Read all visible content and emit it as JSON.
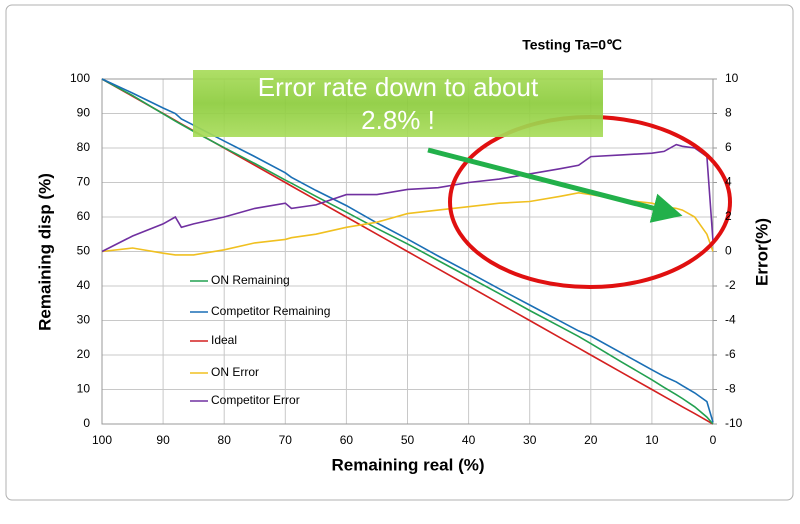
{
  "chart_data": {
    "type": "line",
    "title": "Testing  Ta=0℃",
    "annotation": [
      "Error rate down to about",
      "2.8% !"
    ],
    "x_label": "Remaining real (%)",
    "y_label": "Remaining disp (%)",
    "y2_label": "Error(%)",
    "x": [
      100,
      95,
      90,
      88,
      87,
      85,
      80,
      75,
      70,
      69,
      65,
      60,
      55,
      50,
      45,
      40,
      35,
      30,
      25,
      22,
      20,
      15,
      10,
      8,
      6,
      5,
      3,
      1,
      0
    ],
    "xlim": [
      100,
      0
    ],
    "xticks": [
      100,
      90,
      80,
      70,
      60,
      50,
      40,
      30,
      20,
      10,
      0
    ],
    "ylim": [
      0,
      100
    ],
    "yticks": [
      0,
      10,
      20,
      30,
      40,
      50,
      60,
      70,
      80,
      90,
      100
    ],
    "y2lim": [
      -10,
      10
    ],
    "y2ticks": [
      -10,
      -8,
      -6,
      -4,
      -2,
      0,
      2,
      4,
      6,
      8,
      10
    ],
    "grid": true,
    "series": [
      {
        "name": "ON Remaining",
        "color": "#22a050",
        "values": [
          100,
          95.2,
          89.9,
          87.8,
          86.8,
          84.8,
          80.1,
          75.5,
          70.7,
          69.8,
          66,
          61.4,
          56.7,
          52.2,
          47.4,
          42.6,
          37.8,
          32.9,
          28.2,
          25.4,
          23.3,
          18,
          12.8,
          10.6,
          8.5,
          7.4,
          5,
          2,
          0
        ]
      },
      {
        "name": "Competitor  Remaining",
        "color": "#1a6fb5",
        "values": [
          100,
          95.9,
          91.6,
          90,
          88.4,
          86.6,
          82,
          77.5,
          72.8,
          71.5,
          67.7,
          63.3,
          58.3,
          53.6,
          48.7,
          44,
          39.2,
          34.5,
          29.8,
          27,
          25.5,
          20.6,
          15.7,
          13.8,
          12.2,
          11.1,
          9,
          6.5,
          0.5
        ]
      },
      {
        "name": "Ideal",
        "color": "#d42020",
        "values": [
          100,
          95,
          90,
          88,
          87,
          85,
          80,
          75,
          70,
          69,
          65,
          60,
          55,
          50,
          45,
          40,
          35,
          30,
          25,
          22,
          20,
          15,
          10,
          8,
          6,
          5,
          3,
          1,
          0
        ]
      },
      {
        "name": "ON Error",
        "color": "#f0c020",
        "axis": "y2",
        "values": [
          0,
          0.2,
          -0.1,
          -0.2,
          -0.2,
          -0.2,
          0.1,
          0.5,
          0.7,
          0.8,
          1,
          1.4,
          1.7,
          2.2,
          2.4,
          2.6,
          2.8,
          2.9,
          3.2,
          3.4,
          3.3,
          3,
          2.8,
          2.6,
          2.5,
          2.4,
          2,
          1,
          0
        ]
      },
      {
        "name": "Competitor   Error",
        "color": "#7030a0",
        "axis": "y2",
        "values": [
          0,
          0.9,
          1.6,
          2,
          1.4,
          1.6,
          2,
          2.5,
          2.8,
          2.5,
          2.7,
          3.3,
          3.3,
          3.6,
          3.7,
          4,
          4.2,
          4.5,
          4.8,
          5,
          5.5,
          5.6,
          5.7,
          5.8,
          6.2,
          6.1,
          6,
          5.5,
          0.6
        ]
      }
    ]
  }
}
